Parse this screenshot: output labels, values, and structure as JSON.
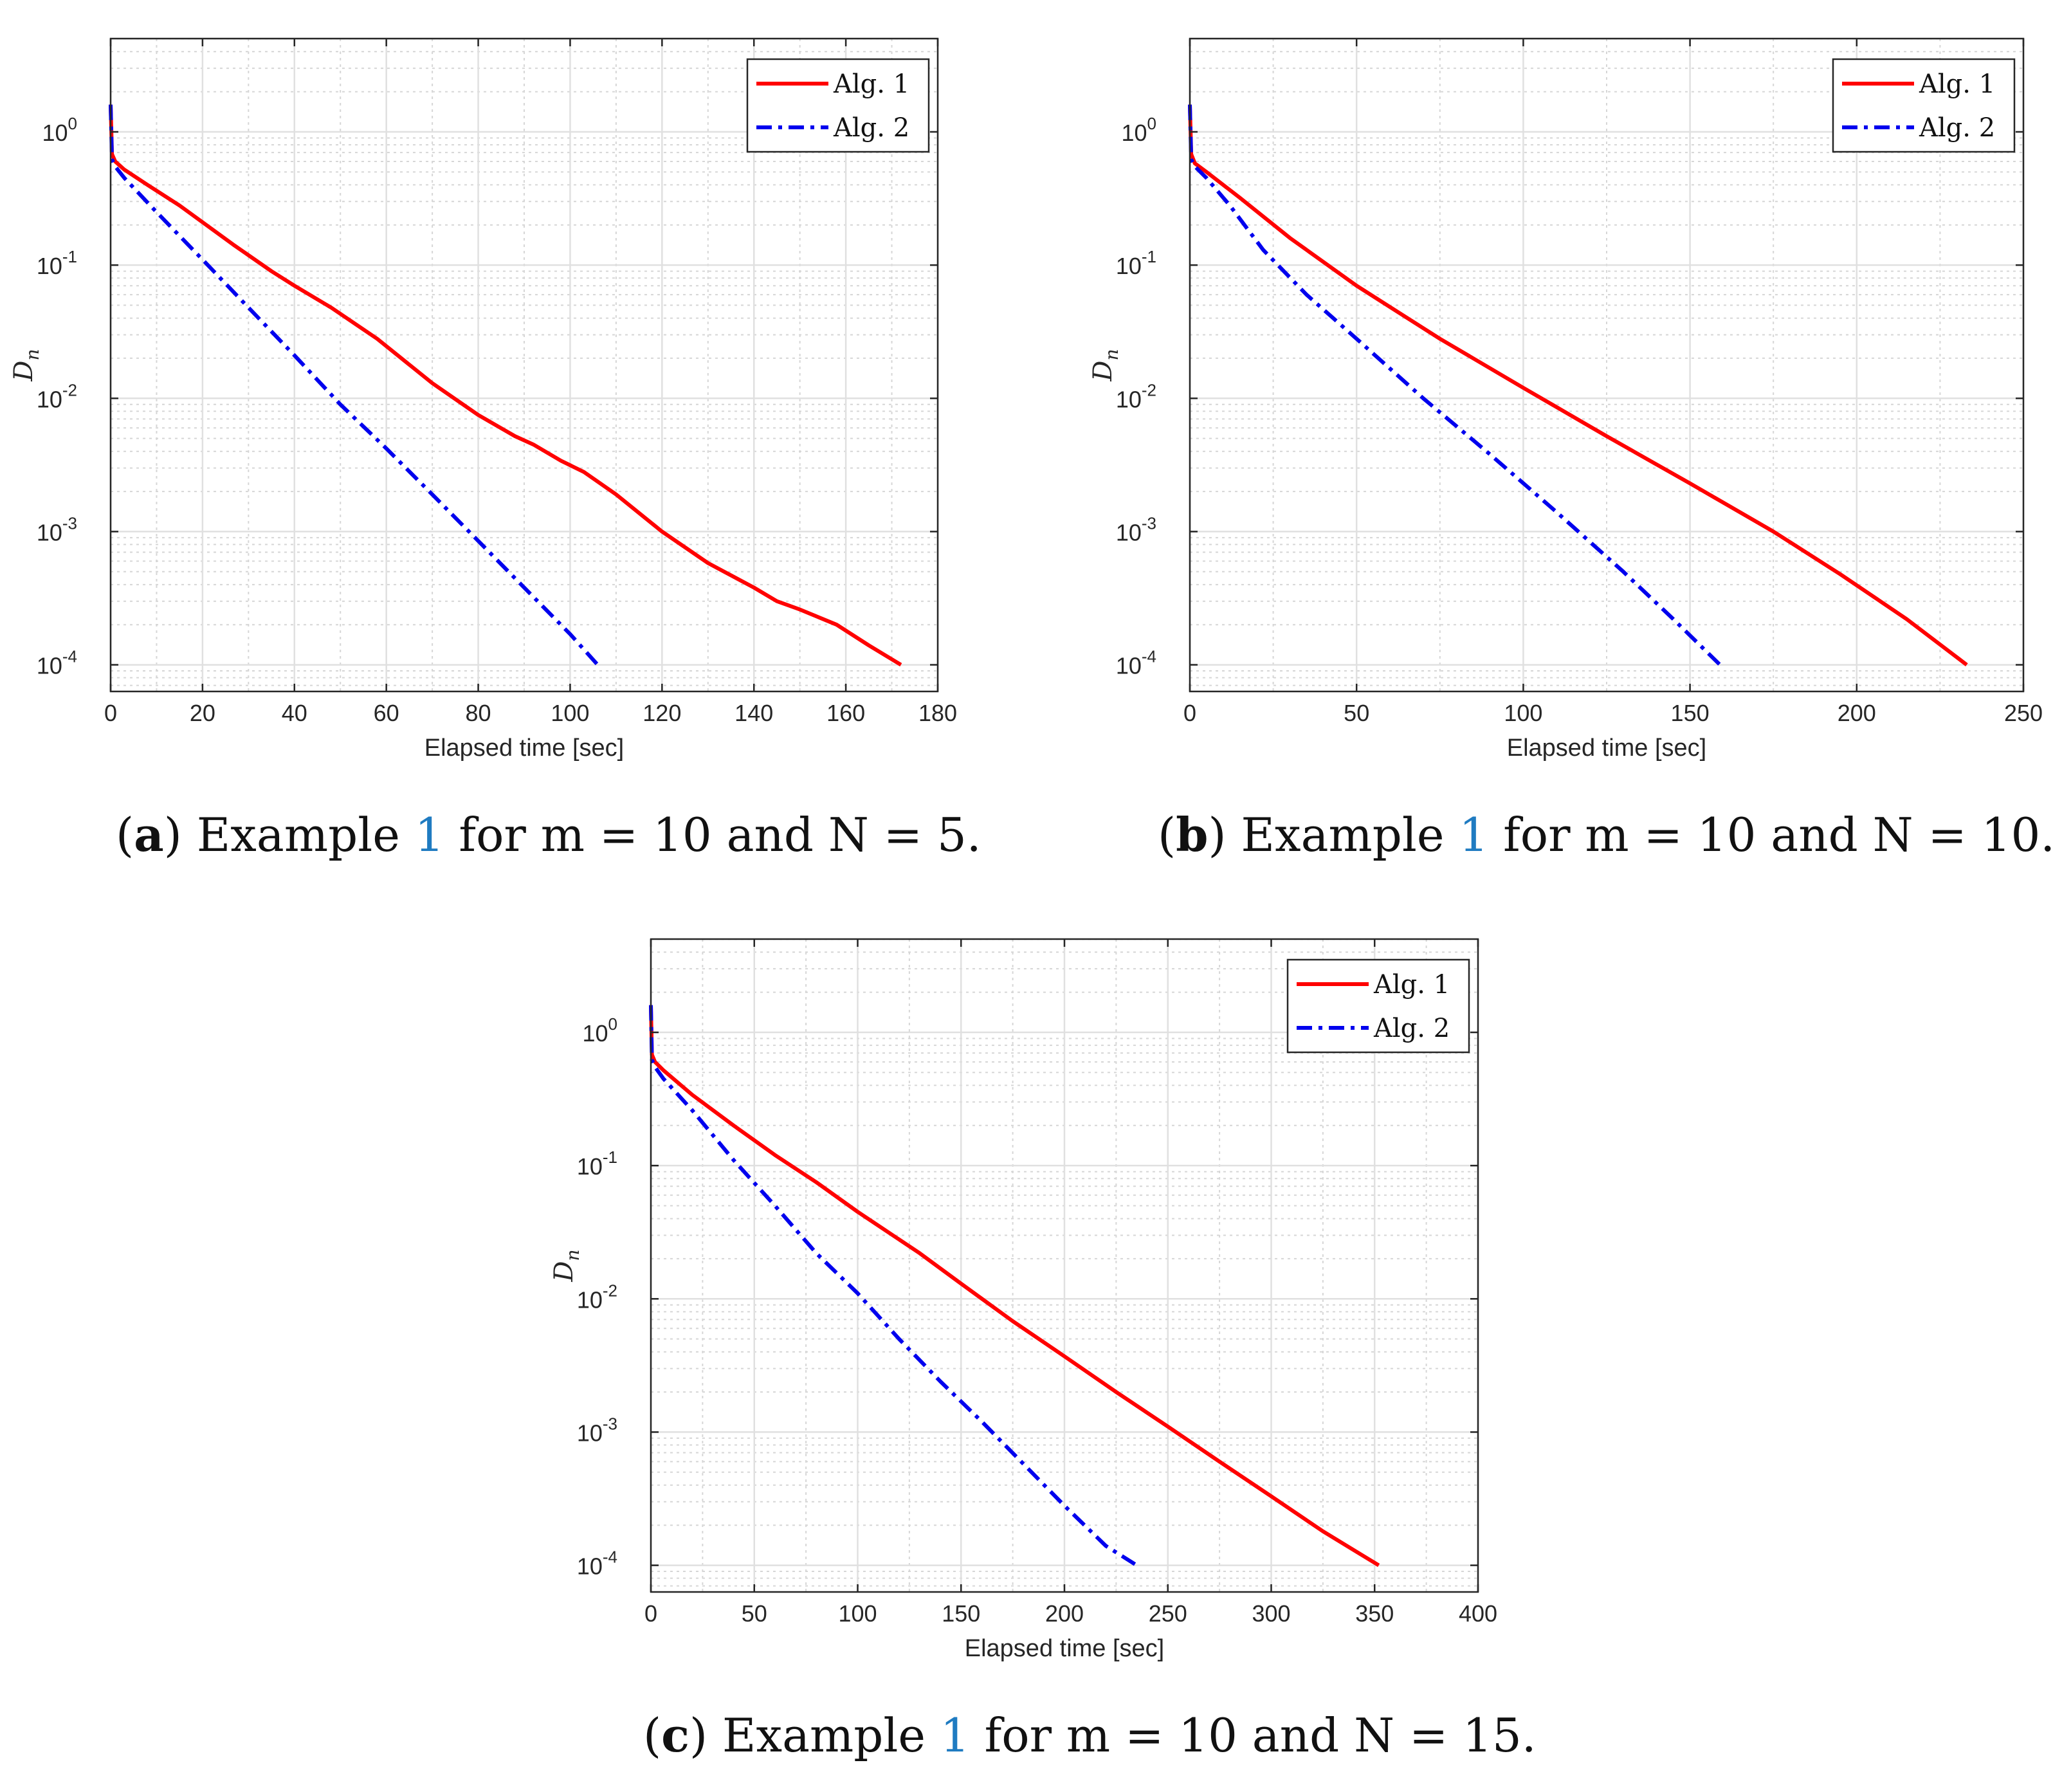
{
  "chart_data": [
    {
      "id": "a",
      "type": "line",
      "xscale": "linear",
      "yscale": "log",
      "xlim": [
        0,
        180
      ],
      "ylim_exp": [
        -4.2,
        0.7
      ],
      "xticks": [
        0,
        20,
        40,
        60,
        80,
        100,
        120,
        140,
        160,
        180
      ],
      "xtick_labels": [
        "0",
        "20",
        "40",
        "60",
        "80",
        "100",
        "120",
        "140",
        "160",
        "180"
      ],
      "yticks_exp": [
        0,
        -1,
        -2,
        -3,
        -4
      ],
      "ytick_base": "10",
      "ytick_exponents": [
        "0",
        "-1",
        "-2",
        "-3",
        "-4"
      ],
      "xlabel": "Elapsed time [sec]",
      "ylabel": "D",
      "ylabel_sub": "n",
      "legend_position": "top-right",
      "grid": true,
      "caption": {
        "letter": "a",
        "pre": "Example",
        "ref": "1",
        "post": "for m = 10 and N = 5."
      },
      "series": [
        {
          "name": "Alg. 1",
          "color": "#ff0000",
          "style": "solid",
          "x": [
            0,
            0.3,
            1,
            3,
            8,
            15,
            27,
            35,
            40,
            48,
            58,
            70,
            80,
            88,
            92,
            98,
            103,
            110,
            120,
            130,
            140,
            145,
            150,
            158,
            165,
            172
          ],
          "y": [
            1.6,
            0.68,
            0.6,
            0.52,
            0.4,
            0.28,
            0.14,
            0.09,
            0.07,
            0.048,
            0.028,
            0.013,
            0.0075,
            0.0052,
            0.0045,
            0.0034,
            0.0028,
            0.0019,
            0.001,
            0.00058,
            0.00038,
            0.0003,
            0.00026,
            0.0002,
            0.00014,
            0.0001
          ]
        },
        {
          "name": "Alg. 2",
          "color": "#0000ee",
          "style": "dashdot",
          "x": [
            0,
            0.3,
            1,
            3,
            10,
            20,
            30,
            40,
            50,
            60,
            70,
            80,
            90,
            100,
            106
          ],
          "y": [
            1.6,
            0.62,
            0.55,
            0.45,
            0.25,
            0.11,
            0.048,
            0.021,
            0.009,
            0.0042,
            0.0019,
            0.00085,
            0.00038,
            0.00017,
            0.0001
          ]
        }
      ]
    },
    {
      "id": "b",
      "type": "line",
      "xscale": "linear",
      "yscale": "log",
      "xlim": [
        0,
        250
      ],
      "ylim_exp": [
        -4.2,
        0.7
      ],
      "xticks": [
        0,
        50,
        100,
        150,
        200,
        250
      ],
      "xtick_labels": [
        "0",
        "50",
        "100",
        "150",
        "200",
        "250"
      ],
      "yticks_exp": [
        0,
        -1,
        -2,
        -3,
        -4
      ],
      "ytick_base": "10",
      "ytick_exponents": [
        "0",
        "-1",
        "-2",
        "-3",
        "-4"
      ],
      "xlabel": "Elapsed time [sec]",
      "ylabel": "D",
      "ylabel_sub": "n",
      "legend_position": "top-right",
      "grid": true,
      "caption": {
        "letter": "b",
        "pre": "Example",
        "ref": "1",
        "post": "for m = 10 and N = 10."
      },
      "series": [
        {
          "name": "Alg. 1",
          "color": "#ff0000",
          "style": "solid",
          "x": [
            0,
            0.4,
            1.5,
            5,
            15,
            30,
            50,
            75,
            100,
            125,
            150,
            175,
            195,
            215,
            233
          ],
          "y": [
            1.6,
            0.68,
            0.58,
            0.5,
            0.32,
            0.16,
            0.07,
            0.028,
            0.012,
            0.0052,
            0.0023,
            0.001,
            0.00048,
            0.00022,
            0.0001
          ]
        },
        {
          "name": "Alg. 2",
          "color": "#0000ee",
          "style": "dashdot",
          "x": [
            0,
            0.4,
            1.5,
            5,
            12,
            22,
            35,
            50,
            70,
            90,
            110,
            130,
            145,
            159
          ],
          "y": [
            1.6,
            0.62,
            0.55,
            0.45,
            0.28,
            0.13,
            0.06,
            0.028,
            0.01,
            0.0038,
            0.0014,
            0.0005,
            0.00022,
            0.0001
          ]
        }
      ]
    },
    {
      "id": "c",
      "type": "line",
      "xscale": "linear",
      "yscale": "log",
      "xlim": [
        0,
        400
      ],
      "ylim_exp": [
        -4.2,
        0.7
      ],
      "xticks": [
        0,
        50,
        100,
        150,
        200,
        250,
        300,
        350,
        400
      ],
      "xtick_labels": [
        "0",
        "50",
        "100",
        "150",
        "200",
        "250",
        "300",
        "350",
        "400"
      ],
      "yticks_exp": [
        0,
        -1,
        -2,
        -3,
        -4
      ],
      "ytick_base": "10",
      "ytick_exponents": [
        "0",
        "-1",
        "-2",
        "-3",
        "-4"
      ],
      "xlabel": "Elapsed time [sec]",
      "ylabel": "D",
      "ylabel_sub": "n",
      "legend_position": "top-right",
      "grid": true,
      "caption": {
        "letter": "c",
        "pre": "Example",
        "ref": "1",
        "post": "for m = 10 and N = 15."
      },
      "series": [
        {
          "name": "Alg. 1",
          "color": "#ff0000",
          "style": "solid",
          "x": [
            0,
            0.5,
            2,
            6,
            20,
            40,
            60,
            80,
            100,
            130,
            150,
            175,
            200,
            225,
            250,
            275,
            300,
            325,
            352
          ],
          "y": [
            1.6,
            0.68,
            0.6,
            0.52,
            0.34,
            0.2,
            0.12,
            0.075,
            0.045,
            0.022,
            0.013,
            0.0068,
            0.0037,
            0.002,
            0.0011,
            0.0006,
            0.00033,
            0.00018,
            0.0001
          ]
        },
        {
          "name": "Alg. 2",
          "color": "#0000ee",
          "style": "dashdot",
          "x": [
            0,
            0.5,
            2,
            6,
            20,
            40,
            60,
            80,
            100,
            120,
            140,
            160,
            180,
            200,
            220,
            235
          ],
          "y": [
            1.6,
            0.62,
            0.55,
            0.45,
            0.26,
            0.11,
            0.05,
            0.022,
            0.011,
            0.005,
            0.0024,
            0.0012,
            0.00058,
            0.00028,
            0.00014,
            0.0001
          ]
        }
      ]
    }
  ]
}
